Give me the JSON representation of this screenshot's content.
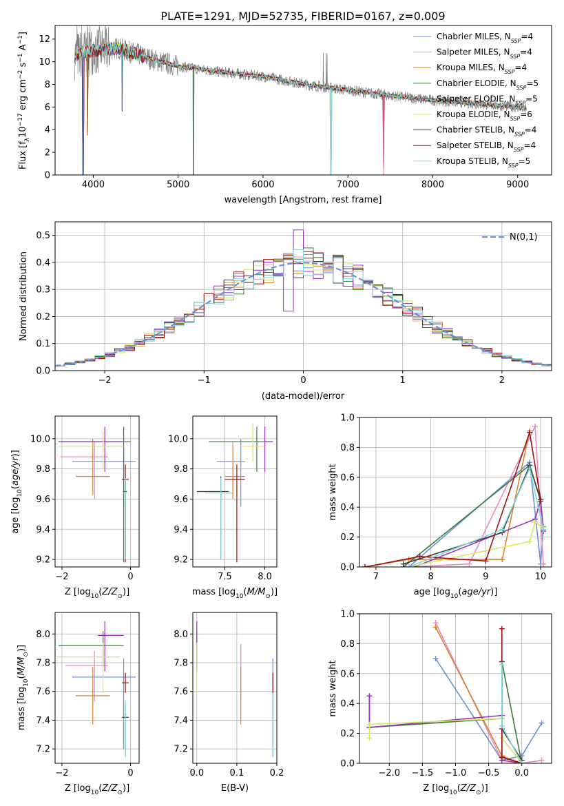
{
  "figure": {
    "title": "PLATE=1291, MJD=52735, FIBERID=0167, z=0.009"
  },
  "models": [
    {
      "name": "Chabrier MILES",
      "nssp": "4",
      "color": "#6b8fd8"
    },
    {
      "name": "Salpeter MILES",
      "nssp": "4",
      "color": "#e88ac0"
    },
    {
      "name": "Kroupa MILES",
      "nssp": "4",
      "color": "#d9822b"
    },
    {
      "name": "Chabrier ELODIE",
      "nssp": "5",
      "color": "#3a7d3a"
    },
    {
      "name": "Salpeter ELODIE",
      "nssp": "5",
      "color": "#9b30c0"
    },
    {
      "name": "Kroupa ELODIE",
      "nssp": "6",
      "color": "#d7e85a"
    },
    {
      "name": "Chabrier STELIB",
      "nssp": "4",
      "color": "#404040"
    },
    {
      "name": "Salpeter STELIB",
      "nssp": "4",
      "color": "#a01010"
    },
    {
      "name": "Kroupa STELIB",
      "nssp": "5",
      "color": "#7fd8d8"
    }
  ],
  "chart_data": [
    {
      "id": "spectrum",
      "type": "line",
      "xlabel": "wavelength [Angstrom, rest frame]",
      "ylabel": "Flux [f_λ10^-17 erg cm^-2 s^-1 A^-1]",
      "xlim": [
        3550,
        9400
      ],
      "ylim": [
        0,
        13.2
      ],
      "xticks": [
        4000,
        5000,
        6000,
        7000,
        8000,
        9000
      ],
      "yticks": [
        0,
        2,
        4,
        6,
        8,
        10,
        12
      ],
      "grid": false,
      "legend": "top-right",
      "data_color": "#808080",
      "data_x_range": [
        3780,
        9100
      ],
      "continuum_knots": [
        [
          3780,
          10.5
        ],
        [
          4000,
          11.0
        ],
        [
          4300,
          11.2
        ],
        [
          4700,
          10.2
        ],
        [
          5000,
          9.6
        ],
        [
          5500,
          9.1
        ],
        [
          6000,
          8.7
        ],
        [
          6500,
          8.0
        ],
        [
          7000,
          7.5
        ],
        [
          7500,
          7.0
        ],
        [
          8000,
          6.6
        ],
        [
          8500,
          6.3
        ],
        [
          9000,
          6.0
        ],
        [
          9100,
          5.8
        ]
      ],
      "dips": [
        [
          3880,
          0.0
        ],
        [
          3930,
          3.5
        ],
        [
          4340,
          5.6
        ],
        [
          5180,
          0.0
        ],
        [
          6800,
          0.0
        ],
        [
          7420,
          0.0
        ]
      ]
    },
    {
      "id": "residual-histogram",
      "type": "bar",
      "xlabel": "(data-model)/error",
      "ylabel": "Normed distribution",
      "xlim": [
        -2.5,
        2.5
      ],
      "ylim": [
        0,
        0.55
      ],
      "xticks": [
        -2,
        -1,
        0,
        1,
        2
      ],
      "yticks": [
        0.0,
        0.1,
        0.2,
        0.3,
        0.4,
        0.5
      ],
      "grid": true,
      "legend": "top-right",
      "legend_label": "N(0,1)",
      "reference_curve": {
        "name": "N(0,1)",
        "mean": 0,
        "sigma": 1,
        "color": "#6b8fd8"
      },
      "bin_width": 0.1
    },
    {
      "id": "age-vs-Z",
      "type": "scatter",
      "xlabel": "Z [log10(Z/Z⊙)]",
      "ylabel": "age [log10(age/yr)]",
      "xlim": [
        -2.2,
        0.25
      ],
      "ylim": [
        9.15,
        10.15
      ],
      "xticks": [
        -2,
        0
      ],
      "yticks": [
        9.2,
        9.4,
        9.6,
        9.8,
        10.0
      ],
      "grid": true,
      "points": [
        {
          "x": -0.2,
          "y": 9.85,
          "xerr": [
            1.5,
            0.35
          ],
          "yerr": [
            0.3,
            0.1
          ],
          "model": 0
        },
        {
          "x": -1.05,
          "y": 9.88,
          "xerr": [
            1.0,
            0.4
          ],
          "yerr": [
            0.28,
            0.1
          ],
          "model": 1
        },
        {
          "x": -1.1,
          "y": 9.75,
          "xerr": [
            0.5,
            0.5
          ],
          "yerr": [
            0.12,
            0.25
          ],
          "model": 2
        },
        {
          "x": -0.2,
          "y": 9.98,
          "xerr": [
            1.9,
            0.2
          ],
          "yerr": [
            0.8,
            0.1
          ],
          "model": 3
        },
        {
          "x": -0.75,
          "y": 9.98,
          "xerr": [
            1.35,
            0.55
          ],
          "yerr": [
            0.2,
            0.1
          ],
          "model": 4
        },
        {
          "x": -0.8,
          "y": 9.95,
          "xerr": [
            1.3,
            0.6
          ],
          "yerr": [
            0.15,
            0.1
          ],
          "model": 5
        },
        {
          "x": -0.15,
          "y": 9.65,
          "xerr": [
            0.05,
            0.05
          ],
          "yerr": [
            0.45,
            0.1
          ],
          "model": 6
        },
        {
          "x": -0.15,
          "y": 9.73,
          "xerr": [
            0.1,
            0.1
          ],
          "yerr": [
            0.55,
            0.1
          ],
          "model": 7
        },
        {
          "x": -0.15,
          "y": 9.64,
          "xerr": [
            0.05,
            0.05
          ],
          "yerr": [
            0.44,
            0.1
          ],
          "model": 8
        }
      ]
    },
    {
      "id": "age-vs-mass",
      "type": "scatter",
      "xlabel": "mass [log10(M/M⊙)]",
      "ylabel": "",
      "xlim": [
        7.1,
        8.15
      ],
      "ylim": [
        9.15,
        10.15
      ],
      "xticks": [
        7.5,
        8.0
      ],
      "yticks": [
        9.2,
        9.4,
        9.6,
        9.8,
        10.0
      ],
      "grid": true,
      "points": [
        {
          "x": 7.7,
          "y": 9.85,
          "xerr": [
            0.3,
            0.05
          ],
          "yerr": [
            0.3,
            0.15
          ],
          "model": 0
        },
        {
          "x": 7.6,
          "y": 9.88,
          "xerr": [
            0.0,
            0.0
          ],
          "yerr": [
            0.2,
            0.1
          ],
          "model": 1
        },
        {
          "x": 7.6,
          "y": 9.75,
          "xerr": [
            0.1,
            0.15
          ],
          "yerr": [
            0.15,
            0.2
          ],
          "model": 2
        },
        {
          "x": 7.9,
          "y": 9.98,
          "xerr": [
            0.6,
            0.2
          ],
          "yerr": [
            0.2,
            0.1
          ],
          "model": 3
        },
        {
          "x": 8.0,
          "y": 9.98,
          "xerr": [
            0.0,
            0.1
          ],
          "yerr": [
            0.2,
            0.1
          ],
          "model": 4
        },
        {
          "x": 7.85,
          "y": 9.95,
          "xerr": [
            0.15,
            0.15
          ],
          "yerr": [
            0.1,
            0.15
          ],
          "model": 5
        },
        {
          "x": 7.45,
          "y": 9.65,
          "xerr": [
            0.3,
            0.1
          ],
          "yerr": [
            0.45,
            0.1
          ],
          "model": 6
        },
        {
          "x": 7.65,
          "y": 9.73,
          "xerr": [
            0.15,
            0.1
          ],
          "yerr": [
            0.55,
            0.1
          ],
          "model": 7
        },
        {
          "x": 7.45,
          "y": 9.64,
          "xerr": [
            0.2,
            0.15
          ],
          "yerr": [
            0.44,
            0.1
          ],
          "model": 8
        }
      ]
    },
    {
      "id": "massweight-vs-age",
      "type": "line",
      "xlabel": "age [log10(age/yr)]",
      "ylabel": "mass weight",
      "xlim": [
        6.7,
        10.2
      ],
      "ylim": [
        0,
        1.0
      ],
      "xticks": [
        7,
        8,
        9,
        10
      ],
      "yticks": [
        0.0,
        0.2,
        0.4,
        0.6,
        0.8,
        1.0
      ],
      "grid": true,
      "series": [
        {
          "model": 0,
          "x": [
            7.6,
            9.8,
            10.0,
            10.05
          ],
          "y": [
            0.0,
            0.7,
            0.02,
            0.27
          ]
        },
        {
          "model": 1,
          "x": [
            7.6,
            8.7,
            9.9,
            10.05
          ],
          "y": [
            0.0,
            0.02,
            0.94,
            0.02
          ]
        },
        {
          "model": 2,
          "x": [
            6.8,
            7.6,
            9.3,
            9.8
          ],
          "y": [
            0.0,
            0.05,
            0.05,
            0.91
          ]
        },
        {
          "model": 3,
          "x": [
            7.5,
            9.8,
            10.0,
            10.05
          ],
          "y": [
            0.0,
            0.68,
            0.45,
            0.24
          ]
        },
        {
          "model": 4,
          "x": [
            7.7,
            9.9,
            10.0,
            10.05
          ],
          "y": [
            0.0,
            0.32,
            0.45,
            0.24
          ]
        },
        {
          "model": 5,
          "x": [
            7.6,
            9.8,
            9.9,
            10.05
          ],
          "y": [
            0.0,
            0.17,
            0.3,
            0.26
          ]
        },
        {
          "model": 6,
          "x": [
            7.5,
            9.3,
            9.8,
            10.0
          ],
          "y": [
            0.02,
            0.23,
            0.68,
            0.44
          ]
        },
        {
          "model": 7,
          "x": [
            6.8,
            7.8,
            9.0,
            9.8,
            10.0
          ],
          "y": [
            0.0,
            0.07,
            0.04,
            0.9,
            0.45
          ]
        },
        {
          "model": 8,
          "x": [
            7.6,
            9.3,
            9.8,
            10.05
          ],
          "y": [
            0.0,
            0.25,
            0.66,
            0.25
          ]
        }
      ]
    },
    {
      "id": "mass-vs-Z",
      "type": "scatter",
      "xlabel": "Z [log10(Z/Z⊙)]",
      "ylabel": "mass [log10(M/M⊙)]",
      "xlim": [
        -2.2,
        0.25
      ],
      "ylim": [
        7.1,
        8.15
      ],
      "xticks": [
        -2,
        0
      ],
      "yticks": [
        7.2,
        7.4,
        7.6,
        7.8,
        8.0
      ],
      "grid": true,
      "points": [
        {
          "x": -0.2,
          "y": 7.7,
          "xerr": [
            1.5,
            0.35
          ],
          "yerr": [
            0.5,
            0.13
          ],
          "model": 0
        },
        {
          "x": -1.05,
          "y": 7.78,
          "xerr": [
            0.85,
            0.4
          ],
          "yerr": [
            0.25,
            0.1
          ],
          "model": 1
        },
        {
          "x": -1.1,
          "y": 7.57,
          "xerr": [
            0.5,
            0.5
          ],
          "yerr": [
            0.2,
            0.2
          ],
          "model": 2
        },
        {
          "x": -0.8,
          "y": 7.92,
          "xerr": [
            1.3,
            0.6
          ],
          "yerr": [
            0.15,
            0.1
          ],
          "model": 3
        },
        {
          "x": -0.75,
          "y": 7.99,
          "xerr": [
            0.2,
            0.55
          ],
          "yerr": [
            0.25,
            0.1
          ],
          "model": 4
        },
        {
          "x": -0.8,
          "y": 7.84,
          "xerr": [
            1.35,
            0.5
          ],
          "yerr": [
            0.25,
            0.1
          ],
          "model": 5
        },
        {
          "x": -0.15,
          "y": 7.42,
          "xerr": [
            0.1,
            0.1
          ],
          "yerr": [
            0.27,
            0.1
          ],
          "model": 6
        },
        {
          "x": -0.15,
          "y": 7.66,
          "xerr": [
            0.1,
            0.1
          ],
          "yerr": [
            0.07,
            0.07
          ],
          "model": 7
        },
        {
          "x": -0.15,
          "y": 7.44,
          "xerr": [
            0.05,
            0.05
          ],
          "yerr": [
            0.3,
            0.1
          ],
          "model": 8
        }
      ]
    },
    {
      "id": "mass-vs-EBV",
      "type": "scatter",
      "xlabel": "E(B-V)",
      "ylabel": "",
      "xlim": [
        -0.01,
        0.2
      ],
      "ylim": [
        7.1,
        8.15
      ],
      "xticks": [
        0.0,
        0.1,
        0.2
      ],
      "yticks": [
        7.2,
        7.4,
        7.6,
        7.8,
        8.0
      ],
      "grid": true,
      "points": [
        {
          "x": 0.19,
          "y": 7.7,
          "xerr": [
            0,
            0
          ],
          "yerr": [
            0.5,
            0.13
          ],
          "model": 0
        },
        {
          "x": 0.11,
          "y": 7.78,
          "xerr": [
            0,
            0
          ],
          "yerr": [
            0.25,
            0.15
          ],
          "model": 1
        },
        {
          "x": 0.11,
          "y": 7.57,
          "xerr": [
            0,
            0
          ],
          "yerr": [
            0.2,
            0.2
          ],
          "model": 2
        },
        {
          "x": 0.0,
          "y": 7.92,
          "xerr": [
            0,
            0
          ],
          "yerr": [
            0.15,
            0.1
          ],
          "model": 3
        },
        {
          "x": 0.0,
          "y": 7.99,
          "xerr": [
            0,
            0
          ],
          "yerr": [
            0.25,
            0.1
          ],
          "model": 4
        },
        {
          "x": 0.0,
          "y": 7.84,
          "xerr": [
            0,
            0
          ],
          "yerr": [
            0.25,
            0.1
          ],
          "model": 5
        },
        {
          "x": 0.19,
          "y": 7.42,
          "xerr": [
            0,
            0
          ],
          "yerr": [
            0.27,
            0.15
          ],
          "model": 6
        },
        {
          "x": 0.19,
          "y": 7.66,
          "xerr": [
            0,
            0
          ],
          "yerr": [
            0.07,
            0.07
          ],
          "model": 7
        },
        {
          "x": 0.19,
          "y": 7.44,
          "xerr": [
            0,
            0
          ],
          "yerr": [
            0.3,
            0.15
          ],
          "model": 8
        }
      ]
    },
    {
      "id": "massweight-vs-Z",
      "type": "line",
      "xlabel": "Z [log10(Z/Z⊙)]",
      "ylabel": "mass weight",
      "xlim": [
        -2.45,
        0.45
      ],
      "ylim": [
        0,
        1.0
      ],
      "xticks": [
        -2.0,
        -1.5,
        -1.0,
        -0.5,
        0.0
      ],
      "yticks": [
        0.0,
        0.2,
        0.4,
        0.6,
        0.8,
        1.0
      ],
      "grid": true,
      "series": [
        {
          "model": 0,
          "x": [
            -1.3,
            -0.3,
            0.0,
            0.3
          ],
          "y": [
            0.7,
            0.02,
            0.05,
            0.27
          ]
        },
        {
          "model": 1,
          "x": [
            -1.3,
            -0.3,
            0.0,
            0.3
          ],
          "y": [
            0.94,
            0.02,
            0.0,
            0.02
          ]
        },
        {
          "model": 2,
          "x": [
            -1.3,
            -0.3,
            0.0
          ],
          "y": [
            0.91,
            0.05,
            0.0
          ]
        },
        {
          "model": 3,
          "x": [
            -2.3,
            -2.3,
            -0.3,
            -0.3,
            0.0
          ],
          "y": [
            0.45,
            0.24,
            0.3,
            0.68,
            0.0
          ]
        },
        {
          "model": 4,
          "x": [
            -2.3,
            -2.3,
            -0.3,
            -0.3,
            0.0
          ],
          "y": [
            0.45,
            0.24,
            0.32,
            0.02,
            0.0
          ]
        },
        {
          "model": 5,
          "x": [
            -2.3,
            -2.3,
            -0.3,
            -0.3,
            0.0
          ],
          "y": [
            0.17,
            0.26,
            0.3,
            0.17,
            0.0
          ]
        },
        {
          "model": 6,
          "x": [
            -0.3,
            -0.3,
            0.0
          ],
          "y": [
            0.68,
            0.23,
            0.02
          ]
        },
        {
          "model": 7,
          "x": [
            -0.3,
            -0.3,
            0.0
          ],
          "y": [
            0.9,
            0.04,
            0.0
          ]
        },
        {
          "model": 8,
          "x": [
            -0.3,
            -0.3,
            0.0
          ],
          "y": [
            0.66,
            0.25,
            0.0
          ]
        }
      ]
    }
  ]
}
